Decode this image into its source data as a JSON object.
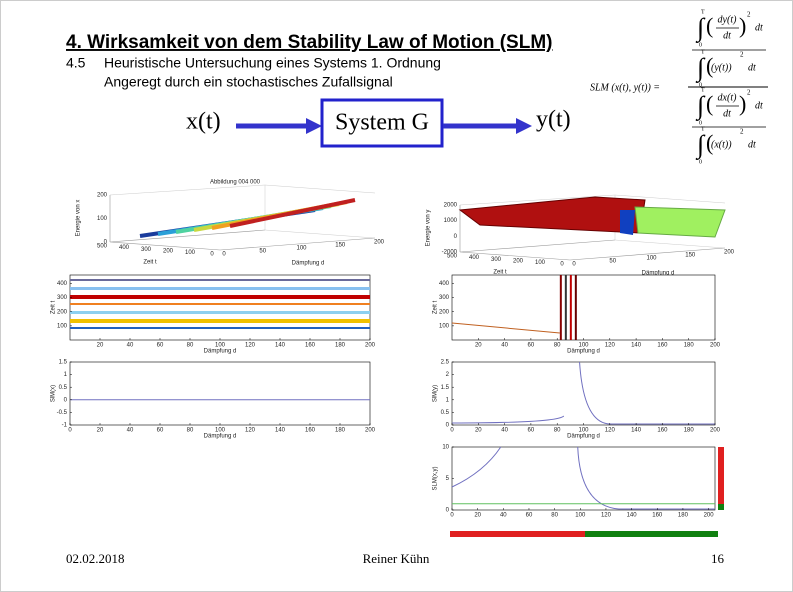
{
  "header": {
    "title": "4.    Wirksamkeit von dem Stability Law of Motion (SLM)",
    "section": "4.5",
    "subtitle": "Heuristische Untersuchung eines Systems 1. Ordnung",
    "subtitle2": "Angeregt durch ein stochastisches Zufallsignal"
  },
  "diagram": {
    "input": "x(t)",
    "block": "System G",
    "output": "y(t)"
  },
  "formula": {
    "lhs": "SLM (x(t), y(t)) =",
    "upper": "T",
    "lower": "0",
    "exp": "2",
    "dt": "dt",
    "num_top": "dy(t)",
    "den_top": "dx(t)",
    "frac_bottom": "dt",
    "y_sq": "(y(t))",
    "x_sq": "(x(t))"
  },
  "surfaces": [
    {
      "title": "Abbildung 004 000",
      "zlabel": "Energie von x",
      "zticks": [
        0,
        100,
        200
      ],
      "tlabel": "Zeit t",
      "tticks": [
        500,
        400,
        300,
        200,
        100,
        0
      ],
      "dlabel": "Dämpfung d",
      "dticks": [
        0,
        50,
        100,
        150,
        200
      ]
    },
    {
      "zlabel": "Energie von y",
      "zticks": [
        -2000,
        0,
        1000,
        2000
      ],
      "tlabel": "Zeit t",
      "tticks": [
        500,
        400,
        300,
        200,
        100,
        0
      ],
      "dlabel": "Dämpfung d",
      "dticks": [
        0,
        50,
        100,
        150,
        200
      ]
    }
  ],
  "plots": [
    {
      "ylabel": "Zeit t",
      "xlabel": "Dämpfung d",
      "xlim": [
        0,
        200
      ],
      "ylim": [
        0,
        460
      ],
      "xticks": [
        20,
        40,
        60,
        80,
        100,
        120,
        140,
        160,
        180,
        200
      ],
      "yticks": [
        100,
        200,
        300,
        400
      ]
    },
    {
      "ylabel": "SlM(x)",
      "xlabel": "Dämpfung d",
      "xlim": [
        0,
        200
      ],
      "ylim": [
        -1,
        1.5
      ],
      "xticks": [
        0,
        20,
        40,
        60,
        80,
        100,
        120,
        140,
        160,
        180,
        200
      ],
      "yticks": [
        -1,
        -0.5,
        0,
        0.5,
        1,
        1.5
      ]
    },
    {
      "ylabel": "Zeit t",
      "xlabel": "Dämpfung d",
      "xlim": [
        0,
        200
      ],
      "ylim": [
        0,
        460
      ],
      "xticks": [
        20,
        40,
        60,
        80,
        100,
        120,
        140,
        160,
        180,
        200
      ],
      "yticks": [
        100,
        200,
        300,
        400
      ]
    },
    {
      "ylabel": "SlM(y)",
      "xlabel": "Dämpfung d",
      "xlim": [
        0,
        200
      ],
      "ylim": [
        0,
        2.5
      ],
      "xticks": [
        0,
        20,
        40,
        60,
        80,
        100,
        120,
        140,
        160,
        180,
        200
      ],
      "yticks": [
        0,
        0.5,
        1,
        1.5,
        2,
        2.5
      ]
    },
    {
      "ylabel": "SLM(x,y)",
      "xlabel": "",
      "xlim": [
        0,
        205
      ],
      "ylim": [
        0,
        10
      ],
      "xticks": [
        0,
        20,
        40,
        60,
        80,
        100,
        120,
        140,
        160,
        180,
        200
      ],
      "yticks": [
        0,
        5,
        10
      ]
    }
  ],
  "footer": {
    "date": "02.02.2018",
    "author": "Reiner Kühn",
    "page": "16"
  }
}
